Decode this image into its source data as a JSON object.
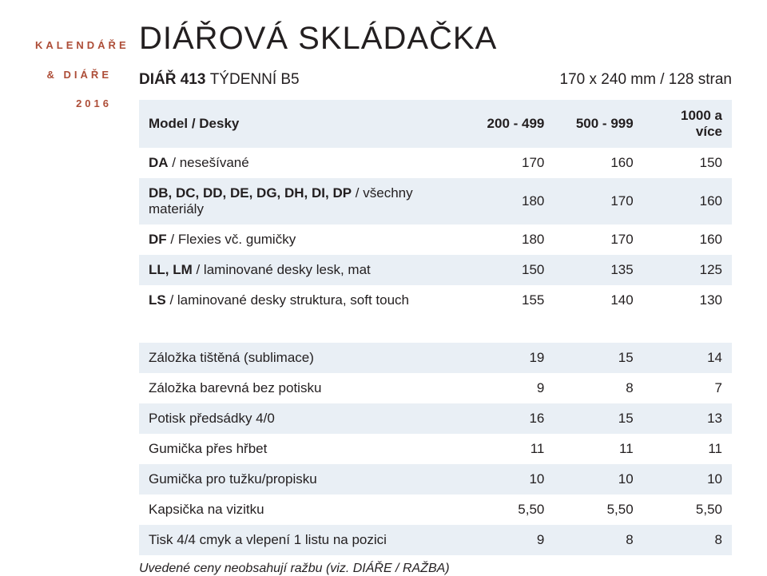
{
  "side": {
    "line1": "KALENDÁŘE",
    "line2": "& DIÁŘE",
    "line3": "2016"
  },
  "title": "DIÁŘOVÁ SKLÁDAČKA",
  "subtitle": {
    "code": "DIÁŘ 413",
    "desc": "TÝDENNÍ B5",
    "size": "170 x 240 mm / 128 stran"
  },
  "columns": {
    "label": "Model / Desky",
    "c1": "200 - 499",
    "c2": "500 - 999",
    "c3": "1000 a více"
  },
  "section1": [
    {
      "bold": "DA",
      "rest": " / nesešívané",
      "v": [
        "170",
        "160",
        "150"
      ]
    },
    {
      "bold": "DB, DC, DD, DE, DG, DH, DI, DP",
      "rest": " / všechny materiály",
      "v": [
        "180",
        "170",
        "160"
      ]
    },
    {
      "bold": "DF",
      "rest": " / Flexies vč. gumičky",
      "v": [
        "180",
        "170",
        "160"
      ]
    },
    {
      "bold": "LL, LM",
      "rest": " / laminované desky lesk, mat",
      "v": [
        "150",
        "135",
        "125"
      ]
    },
    {
      "bold": "LS",
      "rest": " / laminované desky struktura, soft touch",
      "v": [
        "155",
        "140",
        "130"
      ]
    }
  ],
  "section2": [
    {
      "bold": "",
      "rest": "Záložka tištěná (sublimace)",
      "v": [
        "19",
        "15",
        "14"
      ]
    },
    {
      "bold": "",
      "rest": "Záložka barevná bez potisku",
      "v": [
        "9",
        "8",
        "7"
      ]
    },
    {
      "bold": "",
      "rest": "Potisk předsádky 4/0",
      "v": [
        "16",
        "15",
        "13"
      ]
    },
    {
      "bold": "",
      "rest": "Gumička přes hřbet",
      "v": [
        "11",
        "11",
        "11"
      ]
    },
    {
      "bold": "",
      "rest": "Gumička pro tužku/propisku",
      "v": [
        "10",
        "10",
        "10"
      ]
    },
    {
      "bold": "",
      "rest": "Kapsička na vizitku",
      "v": [
        "5,50",
        "5,50",
        "5,50"
      ]
    },
    {
      "bold": "",
      "rest": "Tisk 4/4 cmyk a vlepení 1 listu na pozici",
      "v": [
        "9",
        "8",
        "8"
      ]
    }
  ],
  "footnote": "Uvedené ceny neobsahují ražbu (viz. DIÁŘE / RAŽBA)",
  "style": {
    "accent_color": "#ad4d37",
    "tint_color": "#e9eff5",
    "text_color": "#231f20",
    "bg_color": "#ffffff",
    "col_widths": [
      "55%",
      "15%",
      "15%",
      "15%"
    ]
  }
}
